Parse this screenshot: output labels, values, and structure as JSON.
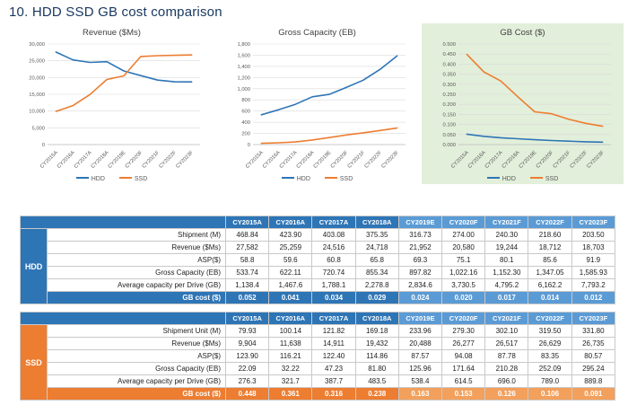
{
  "title": "10. HDD SSD GB cost comparison",
  "colors": {
    "hdd": "#2E75B6",
    "ssd": "#ED7D31",
    "header_dark": "#2E75B6",
    "header_light": "#5B9BD5",
    "ssd_dark": "#ED7D31",
    "ssd_light": "#F2A05C",
    "gb_cost_panel_bg": "#E2EFDA",
    "grid": "#D9D9D9",
    "axis_text": "#595959",
    "title_text": "#17375E"
  },
  "chart_data": [
    {
      "type": "line",
      "title": "Revenue ($Ms)",
      "categories": [
        "CY2015A",
        "CY2016A",
        "CY2017A",
        "CY2018A",
        "CY2019E",
        "CY2020F",
        "CY2021F",
        "CY2022F",
        "CY2023F"
      ],
      "series": [
        {
          "name": "HDD",
          "values": [
            27582,
            25259,
            24516,
            24718,
            21952,
            20580,
            19244,
            18712,
            18703
          ]
        },
        {
          "name": "SSD",
          "values": [
            9904,
            11638,
            14911,
            19432,
            20488,
            26277,
            26517,
            26629,
            26735
          ]
        }
      ],
      "ylim": [
        0,
        30000
      ],
      "ytick": 5000,
      "ydecimals": 0,
      "grid": true,
      "legend_position": "bottom"
    },
    {
      "type": "line",
      "title": "Gross Capacity (EB)",
      "categories": [
        "CY2015A",
        "CY2016A",
        "CY2017A",
        "CY2018A",
        "CY2019E",
        "CY2020F",
        "CY2021F",
        "CY2022F",
        "CY2023F"
      ],
      "series": [
        {
          "name": "HDD",
          "values": [
            533.74,
            622.11,
            720.74,
            855.34,
            897.82,
            1022.16,
            1152.3,
            1347.05,
            1585.93
          ]
        },
        {
          "name": "SSD",
          "values": [
            22.09,
            32.22,
            47.23,
            81.8,
            125.96,
            171.64,
            210.28,
            252.09,
            295.24
          ]
        }
      ],
      "ylim": [
        0,
        1800
      ],
      "ytick": 200,
      "ydecimals": 0,
      "grid": true,
      "legend_position": "bottom"
    },
    {
      "type": "line",
      "title": "GB Cost ($)",
      "categories": [
        "CY2015A",
        "CY2016A",
        "CY2017A",
        "CY2018A",
        "CY2019E",
        "CY2020F",
        "CY2021F",
        "CY2022F",
        "CY2023F"
      ],
      "series": [
        {
          "name": "HDD",
          "values": [
            0.052,
            0.041,
            0.034,
            0.029,
            0.024,
            0.02,
            0.017,
            0.014,
            0.012
          ]
        },
        {
          "name": "SSD",
          "values": [
            0.448,
            0.361,
            0.316,
            0.238,
            0.163,
            0.153,
            0.126,
            0.106,
            0.091
          ]
        }
      ],
      "ylim": [
        0,
        0.5
      ],
      "ytick": 0.05,
      "ydecimals": 3,
      "grid": true,
      "legend_position": "bottom",
      "panel_bg": "#E2EFDA"
    }
  ],
  "tables": [
    {
      "group": "HDD",
      "header_dark": "#2E75B6",
      "header_light": "#5B9BD5",
      "accent_dark": "#2E75B6",
      "accent_light": "#5B9BD5",
      "border": "#17375E",
      "columns": [
        "CY2015A",
        "CY2016A",
        "CY2017A",
        "CY2018A",
        "CY2019E",
        "CY2020F",
        "CY2021F",
        "CY2022F",
        "CY2023F"
      ],
      "rows": [
        {
          "label": "Shipment (M)",
          "values": [
            "468.84",
            "423.90",
            "403.08",
            "375.35",
            "316.73",
            "274.00",
            "240.30",
            "218.60",
            "203.50"
          ]
        },
        {
          "label": "Revenue ($Ms)",
          "values": [
            "27,582",
            "25,259",
            "24,516",
            "24,718",
            "21,952",
            "20,580",
            "19,244",
            "18,712",
            "18,703"
          ]
        },
        {
          "label": "ASP($)",
          "values": [
            "58.8",
            "59.6",
            "60.8",
            "65.8",
            "69.3",
            "75.1",
            "80.1",
            "85.6",
            "91.9"
          ]
        },
        {
          "label": "Gross Capacity (EB)",
          "values": [
            "533.74",
            "622.11",
            "720.74",
            "855.34",
            "897.82",
            "1,022.16",
            "1,152.30",
            "1,347.05",
            "1,585.93"
          ]
        },
        {
          "label": "Average capacity per Drive (GB)",
          "values": [
            "1,138.4",
            "1,467.6",
            "1,788.1",
            "2,278.8",
            "2,834.6",
            "3,730.5",
            "4,795.2",
            "6,162.2",
            "7,793.2"
          ]
        },
        {
          "label": "GB cost ($)",
          "values": [
            "0.052",
            "0.041",
            "0.034",
            "0.029",
            "0.024",
            "0.020",
            "0.017",
            "0.014",
            "0.012"
          ],
          "highlight": true
        }
      ]
    },
    {
      "group": "SSD",
      "header_dark": "#2E75B6",
      "header_light": "#5B9BD5",
      "accent_dark": "#ED7D31",
      "accent_light": "#F2A05C",
      "border": "#ED7D31",
      "columns": [
        "CY2015A",
        "CY2016A",
        "CY2017A",
        "CY2018A",
        "CY2019E",
        "CY2020F",
        "CY2021F",
        "CY2022F",
        "CY2023F"
      ],
      "rows": [
        {
          "label": "Shipment Unit (M)",
          "values": [
            "79.93",
            "100.14",
            "121.82",
            "169.18",
            "233.96",
            "279.30",
            "302.10",
            "319.50",
            "331.80"
          ]
        },
        {
          "label": "Revenue ($Ms)",
          "values": [
            "9,904",
            "11,638",
            "14,911",
            "19,432",
            "20,488",
            "26,277",
            "26,517",
            "26,629",
            "26,735"
          ]
        },
        {
          "label": "ASP($)",
          "values": [
            "123.90",
            "116.21",
            "122.40",
            "114.86",
            "87.57",
            "94.08",
            "87.78",
            "83.35",
            "80.57"
          ]
        },
        {
          "label": "Gross Capacity (EB)",
          "values": [
            "22.09",
            "32.22",
            "47.23",
            "81.80",
            "125.96",
            "171.64",
            "210.28",
            "252.09",
            "295.24"
          ]
        },
        {
          "label": "Average capacity per Drive (GB)",
          "values": [
            "276.3",
            "321.7",
            "387.7",
            "483.5",
            "538.4",
            "614.5",
            "696.0",
            "789.0",
            "889.8"
          ]
        },
        {
          "label": "GB cost ($)",
          "values": [
            "0.448",
            "0.361",
            "0.316",
            "0.238",
            "0.163",
            "0.153",
            "0.126",
            "0.106",
            "0.091"
          ],
          "highlight": true
        }
      ]
    }
  ]
}
